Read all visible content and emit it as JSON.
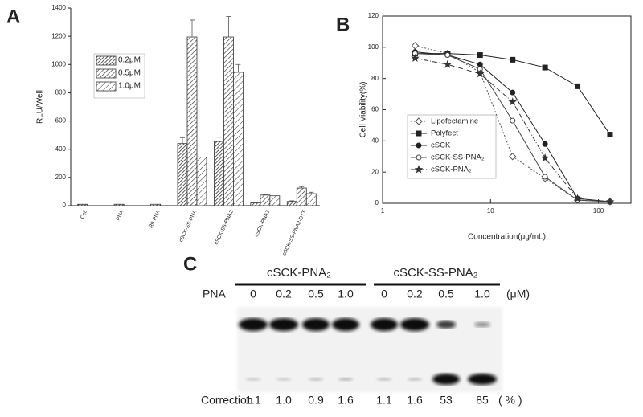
{
  "chart_data": [
    {
      "type": "bar",
      "panel": "A",
      "ylabel": "RLU/Well",
      "categories": [
        "Cell",
        "PNA",
        "R9-PNA",
        "cSCK-SS-PNA",
        "cSCK-SS-PNA2",
        "cSCK-PNA2",
        "cSCK-SS-PNA2-DTT"
      ],
      "series": [
        {
          "name": "0.2μM",
          "color": "#333333",
          "values": [
            10,
            10,
            10,
            440,
            455,
            20,
            30
          ],
          "errors": [
            null,
            null,
            null,
            40,
            30,
            5,
            5
          ]
        },
        {
          "name": "0.5μM",
          "color": "#333333",
          "values": [
            null,
            null,
            null,
            1195,
            1195,
            75,
            125
          ],
          "errors": [
            null,
            null,
            null,
            120,
            145,
            5,
            10
          ]
        },
        {
          "name": "1.0μM",
          "color": "#333333",
          "values": [
            null,
            null,
            null,
            345,
            945,
            70,
            85
          ],
          "errors": [
            null,
            null,
            null,
            null,
            55,
            null,
            10
          ]
        }
      ],
      "ylim": [
        0,
        1400
      ],
      "yticks": [
        0,
        200,
        400,
        600,
        800,
        1000,
        1200,
        1400
      ]
    },
    {
      "type": "line",
      "panel": "B",
      "xlabel": "Concentration(μg/mL)",
      "ylabel": "Cell Viability(%)",
      "log_x": true,
      "x": [
        2,
        4,
        8,
        16,
        32,
        64,
        128
      ],
      "series": [
        {
          "name": "Lipofectamine",
          "color": "#555555",
          "dash": "dotted",
          "marker": "diamond-open",
          "values": [
            101,
            96,
            84,
            30,
            16,
            2,
            1
          ]
        },
        {
          "name": "Polyfect",
          "color": "#222222",
          "dash": "solid",
          "marker": "square",
          "values": [
            96,
            96,
            95,
            92,
            87,
            75,
            44
          ]
        },
        {
          "name": "cSCK",
          "color": "#222222",
          "dash": "solid",
          "marker": "circle",
          "values": [
            97,
            95,
            89,
            71,
            38,
            3,
            1
          ]
        },
        {
          "name": "cSCK-SS-PNA₂",
          "color": "#444444",
          "dash": "solid",
          "marker": "circle-open",
          "values": [
            96,
            95,
            86,
            53,
            17,
            2,
            1
          ]
        },
        {
          "name": "cSCK-PNA₂",
          "color": "#333333",
          "dash": "dashdot",
          "marker": "star",
          "values": [
            93,
            89,
            83,
            65,
            29,
            3,
            1
          ]
        }
      ],
      "xlim": [
        1,
        200
      ],
      "xticks": [
        1,
        10,
        100
      ],
      "ylim": [
        0,
        120
      ],
      "yticks": [
        0,
        20,
        40,
        60,
        80,
        100,
        120
      ]
    }
  ],
  "panel_c": {
    "panel": "C",
    "groups": [
      "cSCK-PNA₂",
      "cSCK-SS-PNA₂"
    ],
    "row_label": "PNA",
    "concentrations": [
      "0",
      "0.2",
      "0.5",
      "1.0",
      "0",
      "0.2",
      "0.5",
      "1.0"
    ],
    "conc_unit": "(μM)",
    "correction_label": "Correction",
    "correction": [
      "1.1",
      "1.0",
      "0.9",
      "1.6",
      "1.1",
      "1.6",
      "53",
      "85"
    ],
    "correction_unit": "( % )"
  }
}
